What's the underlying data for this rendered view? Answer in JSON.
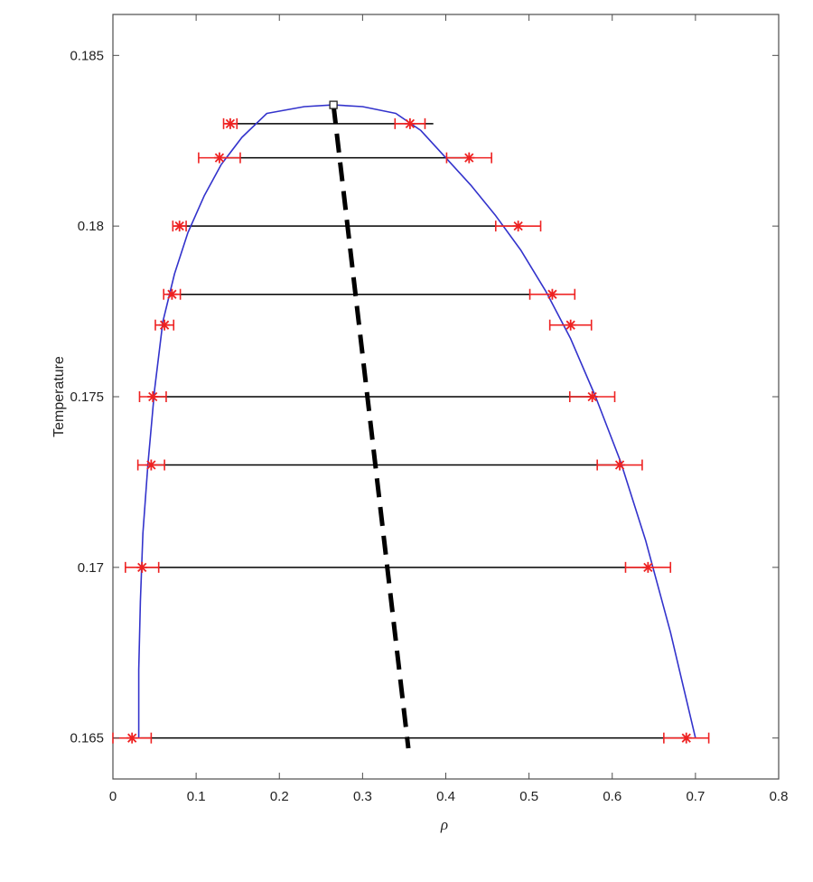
{
  "chart_data": {
    "type": "scatter",
    "title": "",
    "xlabel": "ρ",
    "ylabel": "Temperature",
    "xlim": [
      0,
      0.8
    ],
    "ylim": [
      0.1638,
      0.1862
    ],
    "xticks": [
      0,
      0.1,
      0.2,
      0.3,
      0.4,
      0.5,
      0.6,
      0.7,
      0.8
    ],
    "xtick_labels": [
      "0",
      "0.1",
      "0.2",
      "0.3",
      "0.4",
      "0.5",
      "0.6",
      "0.7",
      "0.8"
    ],
    "yticks": [
      0.165,
      0.17,
      0.175,
      0.18,
      0.185
    ],
    "ytick_labels": [
      "0.165",
      "0.17",
      "0.175",
      "0.18",
      "0.185"
    ],
    "grid": false,
    "colors": {
      "curve": "#3333cc",
      "points": "#ee2222",
      "tie_lines": "#000000",
      "diameter": "#000000"
    },
    "binodal_curve": {
      "x": [
        0.031,
        0.031,
        0.033,
        0.036,
        0.042,
        0.05,
        0.06,
        0.074,
        0.09,
        0.11,
        0.13,
        0.155,
        0.185,
        0.23,
        0.265,
        0.3,
        0.34,
        0.37,
        0.4,
        0.43,
        0.46,
        0.49,
        0.52,
        0.55,
        0.58,
        0.61,
        0.64,
        0.67,
        0.7
      ],
      "y": [
        0.165,
        0.167,
        0.169,
        0.171,
        0.173,
        0.1752,
        0.1772,
        0.1786,
        0.1798,
        0.1809,
        0.1818,
        0.1826,
        0.1833,
        0.1835,
        0.18355,
        0.1835,
        0.1833,
        0.1828,
        0.182,
        0.1812,
        0.1803,
        0.1793,
        0.1781,
        0.1767,
        0.175,
        0.1731,
        0.1708,
        0.1681,
        0.165
      ]
    },
    "critical_point": {
      "x": 0.265,
      "y": 0.18355
    },
    "coexistence": [
      {
        "T": 0.183,
        "rho_gas": 0.141,
        "rho_liq": 0.357,
        "err_gas": 0.008,
        "err_liq": 0.018,
        "tie_x0": 0.141,
        "tie_x1": 0.385
      },
      {
        "T": 0.182,
        "rho_gas": 0.128,
        "rho_liq": 0.428,
        "err_gas": 0.025,
        "err_liq": 0.027,
        "tie_x0": 0.128,
        "tie_x1": 0.428
      },
      {
        "T": 0.18,
        "rho_gas": 0.08,
        "rho_liq": 0.487,
        "err_gas": 0.008,
        "err_liq": 0.027,
        "tie_x0": 0.08,
        "tie_x1": 0.487
      },
      {
        "T": 0.178,
        "rho_gas": 0.071,
        "rho_liq": 0.528,
        "err_gas": 0.01,
        "err_liq": 0.027,
        "tie_x0": 0.071,
        "tie_x1": 0.528
      },
      {
        "T": 0.1771,
        "rho_gas": 0.062,
        "rho_liq": 0.55,
        "err_gas": 0.011,
        "err_liq": 0.025,
        "tie_x0": null,
        "tie_x1": null
      },
      {
        "T": 0.175,
        "rho_gas": 0.048,
        "rho_liq": 0.576,
        "err_gas": 0.016,
        "err_liq": 0.027,
        "tie_x0": 0.048,
        "tie_x1": 0.576
      },
      {
        "T": 0.173,
        "rho_gas": 0.046,
        "rho_liq": 0.609,
        "err_gas": 0.016,
        "err_liq": 0.027,
        "tie_x0": 0.046,
        "tie_x1": 0.609
      },
      {
        "T": 0.17,
        "rho_gas": 0.035,
        "rho_liq": 0.643,
        "err_gas": 0.02,
        "err_liq": 0.027,
        "tie_x0": 0.035,
        "tie_x1": 0.643
      },
      {
        "T": 0.165,
        "rho_gas": 0.023,
        "rho_liq": 0.689,
        "err_gas": 0.023,
        "err_liq": 0.027,
        "tie_x0": 0.033,
        "tie_x1": 0.695
      }
    ],
    "rectilinear_diameter": {
      "x": [
        0.265,
        0.355
      ],
      "y": [
        0.18355,
        0.1647
      ]
    }
  }
}
